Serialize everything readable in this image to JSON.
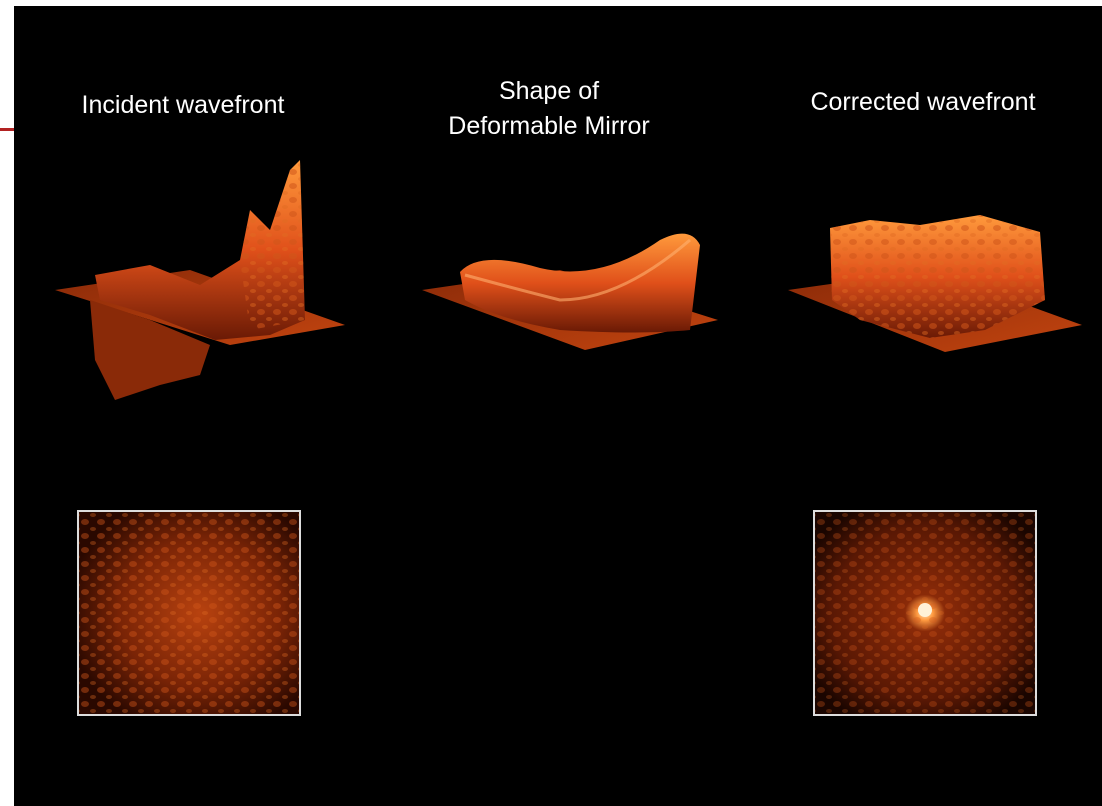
{
  "panels": [
    {
      "title": "Incident wavefront"
    },
    {
      "title_lines": [
        "Shape of",
        "Deformable Mirror"
      ]
    },
    {
      "title": "Corrected wavefront"
    }
  ]
}
